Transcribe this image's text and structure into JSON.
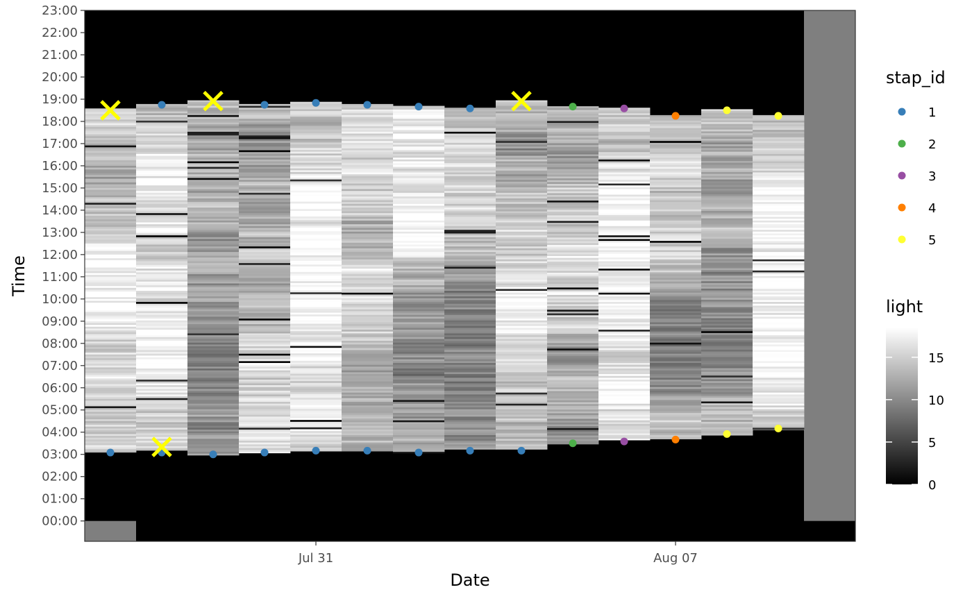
{
  "chart_data": {
    "type": "heatmap",
    "xlabel": "Date",
    "ylabel": "Time",
    "x_tick_labels": [
      "Jul 31",
      "Aug 07"
    ],
    "y_tick_labels": [
      "00:00",
      "01:00",
      "02:00",
      "03:00",
      "04:00",
      "05:00",
      "06:00",
      "07:00",
      "08:00",
      "09:00",
      "10:00",
      "11:00",
      "12:00",
      "13:00",
      "14:00",
      "15:00",
      "16:00",
      "17:00",
      "18:00",
      "19:00",
      "20:00",
      "21:00",
      "22:00",
      "23:00"
    ],
    "dates": [
      "Jul 27",
      "Jul 28",
      "Jul 29",
      "Jul 30",
      "Jul 31",
      "Aug 01",
      "Aug 02",
      "Aug 03",
      "Aug 04",
      "Aug 05",
      "Aug 06",
      "Aug 07",
      "Aug 08",
      "Aug 09",
      "Aug 10"
    ],
    "xlim": [
      "Jul 26 12:00",
      "Aug 10 12:00"
    ],
    "ylim": [
      "-00:55",
      "23:00"
    ],
    "light_scale": {
      "title": "light",
      "min": 0,
      "max": 18.5,
      "ticks": [
        0,
        5,
        10,
        15
      ],
      "low_color": "#000000",
      "high_color": "#ffffff"
    },
    "no_data_color": "#7f7f7f",
    "no_data_spans": [
      {
        "date": "Jul 27",
        "from": "-00:55",
        "to": "00:00"
      },
      {
        "date": "Aug 10",
        "from": "00:00",
        "to": "23:00"
      }
    ],
    "day_light_spans": [
      {
        "date": "Jul 27",
        "rise": "03:05",
        "set": "18:35"
      },
      {
        "date": "Jul 28",
        "rise": "03:10",
        "set": "18:47"
      },
      {
        "date": "Jul 29",
        "rise": "02:57",
        "set": "18:57"
      },
      {
        "date": "Jul 30",
        "rise": "03:03",
        "set": "18:47"
      },
      {
        "date": "Jul 31",
        "rise": "03:08",
        "set": "18:53"
      },
      {
        "date": "Aug 01",
        "rise": "03:08",
        "set": "18:47"
      },
      {
        "date": "Aug 02",
        "rise": "03:03",
        "set": "18:42"
      },
      {
        "date": "Aug 03",
        "rise": "03:13",
        "set": "18:37"
      },
      {
        "date": "Aug 04",
        "rise": "03:13",
        "set": "18:57"
      },
      {
        "date": "Aug 05",
        "rise": "03:27",
        "set": "18:41"
      },
      {
        "date": "Aug 06",
        "rise": "03:38",
        "set": "18:37"
      },
      {
        "date": "Aug 07",
        "rise": "03:41",
        "set": "18:17"
      },
      {
        "date": "Aug 08",
        "rise": "03:51",
        "set": "18:33"
      },
      {
        "date": "Aug 09",
        "rise": "04:06",
        "set": "18:17"
      }
    ],
    "twilight_points": [
      {
        "date": "Jul 28",
        "sunrise": "03:05",
        "sunset": "18:45",
        "stap_id": 1
      },
      {
        "date": "Jul 30",
        "sunrise": "03:05",
        "sunset": "18:45",
        "stap_id": 1
      },
      {
        "date": "Jul 31",
        "sunrise": "03:10",
        "sunset": "18:50",
        "stap_id": 1
      },
      {
        "date": "Aug 01",
        "sunrise": "03:10",
        "sunset": "18:45",
        "stap_id": 1
      },
      {
        "date": "Aug 02",
        "sunrise": "03:05",
        "sunset": "18:40",
        "stap_id": 1
      },
      {
        "date": "Aug 03",
        "sunrise": "03:10",
        "sunset": "18:35",
        "stap_id": 1
      },
      {
        "date": "Aug 04",
        "sunrise": "03:10",
        "sunset": null,
        "stap_id": 1
      },
      {
        "date": "Jul 27",
        "sunrise": "03:05",
        "sunset": null,
        "stap_id": 1
      },
      {
        "date": "Jul 29",
        "sunrise": "03:00",
        "sunset": null,
        "stap_id": 1
      },
      {
        "date": "Aug 05",
        "sunrise": "03:30",
        "sunset": "18:40",
        "stap_id": 2
      },
      {
        "date": "Aug 06",
        "sunrise": "03:35",
        "sunset": "18:35",
        "stap_id": 3
      },
      {
        "date": "Aug 07",
        "sunrise": "03:40",
        "sunset": "18:15",
        "stap_id": 4
      },
      {
        "date": "Aug 08",
        "sunrise": "03:55",
        "sunset": "18:30",
        "stap_id": 5
      },
      {
        "date": "Aug 09",
        "sunrise": "04:10",
        "sunset": "18:15",
        "stap_id": 5
      }
    ],
    "outliers": [
      {
        "date": "Jul 27",
        "time": "18:30"
      },
      {
        "date": "Jul 29",
        "time": "18:55"
      },
      {
        "date": "Aug 04",
        "time": "18:55"
      },
      {
        "date": "Jul 28",
        "time": "03:20"
      }
    ],
    "outlier_color": "#ffff00",
    "legend": {
      "stap_title": "stap_id",
      "stap_items": [
        {
          "label": "1",
          "color": "#377eb8"
        },
        {
          "label": "2",
          "color": "#4daf4a"
        },
        {
          "label": "3",
          "color": "#984ea3"
        },
        {
          "label": "4",
          "color": "#ff7f00"
        },
        {
          "label": "5",
          "color": "#ffff33"
        }
      ],
      "light_title": "light",
      "light_ticks": [
        "15",
        "10",
        "5",
        "0"
      ]
    }
  }
}
